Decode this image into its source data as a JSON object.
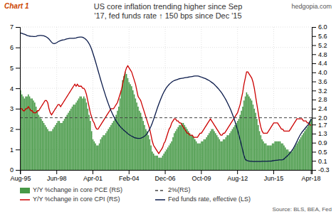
{
  "chart_data": {
    "type": "bar",
    "title": "US core inflation trending higher since Sep\n'17, fed funds rate ↑ 150 bps since Dec '15",
    "annotations": [
      "Chart 1",
      "hedgopia.com",
      "Source: BLS, BEA, Fed"
    ],
    "categories": [
      "Aug-95",
      null,
      null,
      null,
      null,
      null,
      null,
      null,
      null,
      null,
      null,
      null,
      null,
      null,
      null,
      null,
      null,
      null,
      null,
      null,
      null,
      null,
      null,
      null,
      null,
      null,
      null,
      null,
      "Jun-98",
      null,
      null,
      null,
      null,
      null,
      null,
      null,
      null,
      null,
      null,
      null,
      null,
      null,
      null,
      null,
      null,
      null,
      null,
      null,
      null,
      null,
      null,
      null,
      null,
      null,
      null,
      null,
      "Apr-01",
      null,
      null,
      null,
      null,
      null,
      null,
      null,
      null,
      null,
      null,
      null,
      null,
      null,
      null,
      null,
      null,
      null,
      null,
      null,
      null,
      null,
      null,
      null,
      null,
      null,
      null,
      null,
      "Feb-04",
      null,
      null,
      null,
      null,
      null,
      null,
      null,
      null,
      null,
      null,
      null,
      null,
      null,
      null,
      null,
      null,
      null,
      null,
      null,
      null,
      null,
      null,
      null,
      null,
      null,
      null,
      null,
      "Dec-06",
      null,
      null,
      null,
      null,
      null,
      null,
      null,
      null,
      null,
      null,
      null,
      null,
      null,
      null,
      null,
      null,
      null,
      null,
      null,
      null,
      null,
      null,
      null,
      null,
      null,
      null,
      null,
      "Oct-09",
      null,
      null,
      null,
      null,
      null,
      null,
      null,
      null,
      null,
      null,
      null,
      null,
      null,
      null,
      null,
      null,
      null,
      null,
      null,
      null,
      null,
      null,
      null,
      null,
      null,
      null,
      null,
      "Aug-12",
      null,
      null,
      null,
      null,
      null,
      null,
      null,
      null,
      null,
      null,
      null,
      null,
      null,
      null,
      null,
      null,
      null,
      null,
      null,
      null,
      null,
      null,
      null,
      null,
      null,
      null,
      null,
      "Jun-15",
      null,
      null,
      null,
      null,
      null,
      null,
      null,
      null,
      null,
      null,
      null,
      null,
      null,
      null,
      null,
      null,
      null,
      null,
      null,
      null,
      null,
      null,
      null,
      null,
      null,
      null,
      null,
      null,
      "Apr-18"
    ],
    "ylim": [
      0,
      7
    ],
    "yticks": [
      0,
      1,
      2,
      3,
      4,
      5,
      6,
      7
    ],
    "y2lim": [
      -0.3,
      6.0
    ],
    "y2ticks": [
      -0.3,
      0.1,
      0.5,
      0.9,
      1.3,
      1.7,
      {
        "value": 2.0,
        "label": "2.0"
      },
      2.4,
      2.8,
      3.2,
      3.6,
      {
        "value": 4.0,
        "label": "4.0"
      },
      4.4,
      4.8,
      5.2,
      5.6,
      {
        "value": 6.0,
        "label": "6.0"
      }
    ],
    "grid": true,
    "legend": "bottom",
    "series": [
      {
        "name": "Y/Y %change in core PCE (RS)",
        "type": "bar",
        "color": "#2e8b2e",
        "values": [
          3.9,
          3.7,
          3.6,
          3.5,
          3.6,
          3.6,
          3.7,
          3.6,
          3.5,
          3.5,
          3.4,
          3.3,
          3.1,
          2.9,
          2.7,
          2.6,
          2.5,
          2.4,
          2.3,
          2.2,
          2.1,
          2.0,
          1.9,
          1.9,
          1.9,
          2.0,
          2.1,
          2.2,
          2.3,
          2.4,
          2.4,
          2.3,
          2.3,
          2.4,
          2.5,
          2.6,
          2.7,
          2.8,
          2.9,
          3.0,
          3.1,
          3.2,
          3.2,
          3.3,
          3.4,
          3.5,
          3.6,
          3.6,
          3.5,
          3.6,
          3.5,
          3.3,
          3.0,
          2.7,
          2.4,
          1.9,
          1.5,
          1.4,
          1.3,
          1.2,
          1.2,
          1.3,
          1.5,
          1.6,
          1.7,
          1.7,
          1.8,
          1.9,
          2.0,
          2.1,
          2.2,
          2.3,
          2.4,
          2.5,
          2.7,
          2.9,
          3.1,
          3.5,
          3.9,
          4.4,
          4.6,
          4.8,
          4.7,
          4.5,
          4.3,
          4.2,
          4.1,
          3.9,
          3.7,
          3.5,
          3.3,
          3.1,
          2.9,
          2.8,
          2.6,
          2.4,
          2.2,
          2.0,
          1.9,
          1.7,
          1.5,
          1.2,
          0.9,
          0.8,
          0.7,
          0.7,
          0.7,
          0.6,
          0.6,
          0.6,
          0.7,
          0.8,
          0.9,
          1.0,
          1.1,
          1.2,
          1.3,
          1.4,
          1.6,
          1.8,
          1.9,
          2.0,
          2.1,
          2.2,
          2.2,
          2.3,
          2.3,
          2.2,
          2.1,
          2.0,
          1.9,
          1.8,
          1.7,
          1.7,
          1.6,
          1.5,
          1.4,
          1.3,
          1.3,
          1.3,
          1.4,
          1.4,
          1.5,
          1.5,
          1.6,
          1.7,
          1.8,
          1.9,
          2.0,
          2.0,
          1.9,
          1.8,
          1.7,
          1.6,
          1.5,
          1.4,
          1.4,
          1.5,
          1.5,
          1.6,
          1.7,
          1.7,
          1.8,
          1.9,
          2.0,
          2.1,
          2.2,
          2.3,
          2.4,
          2.5,
          2.7,
          2.9,
          3.1,
          3.4,
          3.6,
          3.8,
          3.7,
          3.6,
          3.5,
          3.4,
          3.2,
          3.0,
          2.8,
          2.5,
          2.2,
          1.9,
          1.7,
          1.5,
          1.4,
          1.3,
          1.3,
          1.2,
          1.2,
          1.2,
          1.2,
          1.3,
          1.3,
          1.4,
          1.4,
          1.4,
          1.4,
          1.4,
          1.3,
          1.3,
          1.2,
          1.1,
          1.0,
          1.0,
          0.9,
          0.9,
          0.9,
          1.0,
          1.1,
          1.2,
          1.3,
          1.4,
          1.5,
          1.6,
          1.7,
          1.8,
          1.9,
          2.0,
          2.1,
          2.2,
          2.4,
          2.5
        ]
      },
      {
        "name": "Y/Y %change in core CPI (RS)",
        "type": "line",
        "color": "#cc0000",
        "values": [
          3.0,
          3.0,
          2.9,
          2.9,
          3.0,
          3.0,
          3.1,
          3.0,
          2.9,
          2.9,
          2.8,
          2.8,
          2.8,
          2.9,
          2.9,
          3.0,
          3.1,
          3.2,
          3.3,
          3.4,
          3.4,
          3.3,
          3.0,
          2.8,
          2.7,
          2.8,
          2.9,
          3.0,
          3.1,
          3.2,
          3.2,
          3.1,
          3.2,
          3.3,
          3.4,
          3.5,
          3.6,
          3.7,
          3.8,
          3.9,
          4.0,
          4.1,
          4.2,
          4.1,
          4.2,
          4.1,
          4.1,
          4.1,
          4.0,
          4.0,
          3.9,
          3.7,
          3.4,
          3.1,
          2.8,
          2.6,
          2.4,
          2.3,
          2.1,
          2.0,
          2.0,
          2.1,
          2.2,
          2.3,
          2.4,
          2.5,
          2.6,
          2.7,
          2.8,
          2.9,
          3.0,
          3.0,
          3.0,
          3.1,
          3.2,
          3.3,
          3.5,
          3.7,
          3.9,
          4.2,
          4.5,
          4.8,
          5.0,
          5.1,
          5.0,
          4.9,
          4.8,
          4.6,
          4.4,
          4.2,
          3.9,
          3.6,
          3.5,
          3.4,
          3.2,
          3.0,
          2.8,
          2.6,
          2.4,
          2.2,
          2.0,
          1.7,
          1.4,
          1.2,
          1.1,
          1.0,
          0.9,
          0.8,
          0.9,
          1.0,
          1.1,
          1.3,
          1.4,
          1.6,
          1.8,
          2.0,
          2.1,
          2.3,
          2.4,
          2.5,
          2.5,
          2.4,
          2.4,
          2.3,
          2.3,
          2.2,
          2.1,
          2.0,
          1.9,
          1.8,
          1.8,
          1.7,
          1.7,
          1.7,
          1.6,
          1.6,
          1.6,
          1.6,
          1.7,
          1.8,
          1.8,
          1.9,
          2.0,
          2.1,
          2.2,
          2.3,
          2.4,
          2.5,
          2.4,
          2.3,
          2.2,
          2.1,
          2.0,
          1.9,
          1.8,
          1.7,
          1.7,
          1.8,
          1.8,
          1.9,
          2.0,
          2.1,
          2.2,
          2.3,
          2.4,
          2.5,
          2.6,
          2.7,
          2.8,
          3.0,
          3.2,
          3.5,
          3.8,
          4.2,
          4.5,
          4.8,
          4.8,
          4.7,
          4.6,
          4.5,
          4.3,
          4.0,
          3.6,
          3.2,
          2.8,
          2.4,
          2.1,
          1.9,
          1.8,
          1.8,
          1.8,
          1.8,
          1.9,
          2.0,
          2.1,
          2.2,
          2.3,
          2.3,
          2.3,
          2.3,
          2.2,
          2.1,
          2.0,
          2.0,
          1.9,
          1.9,
          1.9,
          1.9,
          1.9,
          2.0,
          2.1,
          2.2,
          2.3,
          2.4,
          2.5,
          2.5,
          2.5,
          2.5,
          2.5,
          2.4,
          2.4,
          2.4,
          2.3,
          2.3,
          2.2,
          2.2
        ]
      },
      {
        "name": "2%(RS)",
        "type": "hline",
        "axis": "y2",
        "line_style": "dashed",
        "color": "#444444",
        "value": 2.0
      },
      {
        "name": "Fed funds rate, effective (LS)",
        "type": "line",
        "axis": "y2",
        "color": "#0a1a4a",
        "values": [
          5.74,
          5.72,
          5.7,
          5.68,
          5.66,
          5.63,
          5.61,
          5.6,
          5.59,
          5.59,
          5.58,
          5.58,
          5.59,
          5.61,
          5.62,
          5.63,
          5.63,
          5.62,
          5.61,
          5.59,
          5.56,
          5.52,
          5.47,
          5.4,
          5.33,
          5.28,
          5.27,
          5.28,
          5.31,
          5.35,
          5.38,
          5.4,
          5.42,
          5.43,
          5.44,
          5.46,
          5.48,
          5.49,
          5.5,
          5.5,
          5.5,
          5.5,
          5.51,
          5.52,
          5.54,
          5.55,
          5.56,
          5.56,
          5.55,
          5.52,
          5.48,
          5.43,
          5.36,
          5.27,
          5.16,
          5.02,
          4.85,
          4.67,
          4.48,
          4.28,
          4.08,
          3.88,
          3.68,
          3.49,
          3.3,
          3.12,
          2.94,
          2.77,
          2.61,
          2.46,
          2.32,
          2.19,
          2.07,
          1.96,
          1.86,
          1.77,
          1.69,
          1.62,
          1.56,
          1.5,
          1.45,
          1.4,
          1.35,
          1.3,
          1.26,
          1.22,
          1.19,
          1.16,
          1.13,
          1.11,
          1.1,
          1.09,
          1.09,
          1.1,
          1.12,
          1.15,
          1.19,
          1.24,
          1.31,
          1.4,
          1.5,
          1.63,
          1.77,
          1.93,
          2.1,
          2.27,
          2.44,
          2.6,
          2.75,
          2.89,
          3.02,
          3.14,
          3.24,
          3.33,
          3.4,
          3.47,
          3.52,
          3.57,
          3.61,
          3.64,
          3.66,
          3.68,
          3.7,
          3.72,
          3.73,
          3.74,
          3.75,
          3.76,
          3.77,
          3.78,
          3.79,
          3.8,
          3.81,
          3.82,
          3.83,
          3.84,
          3.84,
          3.84,
          3.83,
          3.81,
          3.79,
          3.77,
          3.75,
          3.73,
          3.7,
          3.67,
          3.64,
          3.6,
          3.56,
          3.52,
          3.47,
          3.41,
          3.35,
          3.29,
          3.22,
          3.15,
          3.07,
          2.98,
          2.89,
          2.79,
          2.68,
          2.56,
          2.44,
          2.31,
          2.16,
          2.01,
          1.84,
          1.66,
          1.46,
          1.25,
          1.03,
          0.8,
          0.56,
          0.33,
          0.17,
          0.12,
          0.1,
          0.09,
          0.08,
          0.08,
          0.07,
          0.07,
          0.07,
          0.07,
          0.07,
          0.07,
          0.07,
          0.08,
          0.08,
          0.08,
          0.08,
          0.08,
          0.09,
          0.09,
          0.09,
          0.1,
          0.11,
          0.12,
          0.13,
          0.13,
          0.14,
          0.14,
          0.14,
          0.15,
          0.18,
          0.24,
          0.29,
          0.34,
          0.4,
          0.47,
          0.55,
          0.63,
          0.73,
          0.84,
          0.96,
          1.08,
          1.19,
          1.29,
          1.37,
          1.44,
          1.51,
          1.58,
          1.65,
          1.72,
          1.82,
          1.95
        ]
      }
    ]
  }
}
